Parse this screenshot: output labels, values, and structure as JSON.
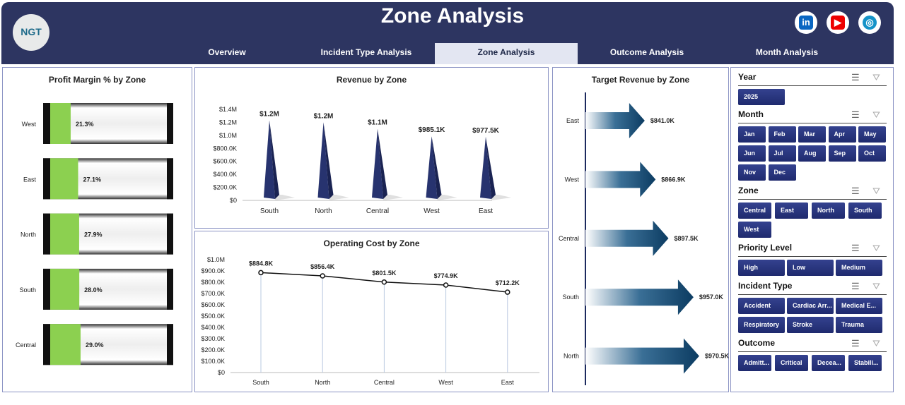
{
  "header": {
    "title": "Zone Analysis",
    "logo_text": "NGT",
    "tabs": [
      "Overview",
      "Incident Type Analysis",
      "Zone Analysis",
      "Outcome Analysis",
      "Month Analysis"
    ],
    "active_tab": "Zone Analysis",
    "social": [
      "linkedin-icon",
      "youtube-icon",
      "globe-icon"
    ]
  },
  "colors": {
    "header": "#2d3561",
    "accent": "#26327a",
    "green": "#8cd050",
    "arrow": "#0c3c62"
  },
  "chart_data": [
    {
      "type": "bar",
      "title": "Profit Margin % by Zone",
      "categories": [
        "West",
        "East",
        "North",
        "South",
        "Central"
      ],
      "values": [
        21.3,
        27.1,
        27.9,
        28.0,
        29.0
      ],
      "labels": [
        "21.3%",
        "27.1%",
        "27.9%",
        "28.0%",
        "29.0%"
      ]
    },
    {
      "type": "bar",
      "title": "Revenue by Zone",
      "categories": [
        "South",
        "North",
        "Central",
        "West",
        "East"
      ],
      "values": [
        1230000,
        1200000,
        1100000,
        985100,
        977500
      ],
      "labels": [
        "$1.2M",
        "$1.2M",
        "$1.1M",
        "$985.1K",
        "$977.5K"
      ],
      "yticks": [
        "$0",
        "$200.0K",
        "$400.0K",
        "$600.0K",
        "$800.0K",
        "$1.0M",
        "$1.2M",
        "$1.4M"
      ],
      "ylim": [
        0,
        1400000
      ]
    },
    {
      "type": "line",
      "title": "Operating Cost by Zone",
      "categories": [
        "South",
        "North",
        "Central",
        "West",
        "East"
      ],
      "values": [
        884800,
        856400,
        801500,
        774900,
        712200
      ],
      "labels": [
        "$884.8K",
        "$856.4K",
        "$801.5K",
        "$774.9K",
        "$712.2K"
      ],
      "yticks": [
        "$0",
        "$100.0K",
        "$200.0K",
        "$300.0K",
        "$400.0K",
        "$500.0K",
        "$600.0K",
        "$700.0K",
        "$800.0K",
        "$900.0K",
        "$1.0M"
      ],
      "ylim": [
        0,
        1000000
      ]
    },
    {
      "type": "bar",
      "title": "Target Revenue by Zone",
      "categories": [
        "East",
        "West",
        "Central",
        "South",
        "North"
      ],
      "values": [
        841000,
        866900,
        897500,
        957000,
        970500
      ],
      "labels": [
        "$841.0K",
        "$866.9K",
        "$897.5K",
        "$957.0K",
        "$970.5K"
      ]
    }
  ],
  "slicers": [
    {
      "title": "Year",
      "items": [
        "2025"
      ]
    },
    {
      "title": "Month",
      "items": [
        "Jan",
        "Feb",
        "Mar",
        "Apr",
        "May",
        "Jun",
        "Jul",
        "Aug",
        "Sep",
        "Oct",
        "Nov",
        "Dec"
      ]
    },
    {
      "title": "Zone",
      "items": [
        "Central",
        "East",
        "North",
        "South",
        "West"
      ]
    },
    {
      "title": "Priority Level",
      "items": [
        "High",
        "Low",
        "Medium"
      ]
    },
    {
      "title": "Incident Type",
      "items": [
        "Accident",
        "Cardiac Arr...",
        "Medical E...",
        "Respiratory",
        "Stroke",
        "Trauma"
      ]
    },
    {
      "title": "Outcome",
      "items": [
        "Admitt...",
        "Critical",
        "Decea...",
        "Stabili..."
      ]
    }
  ]
}
